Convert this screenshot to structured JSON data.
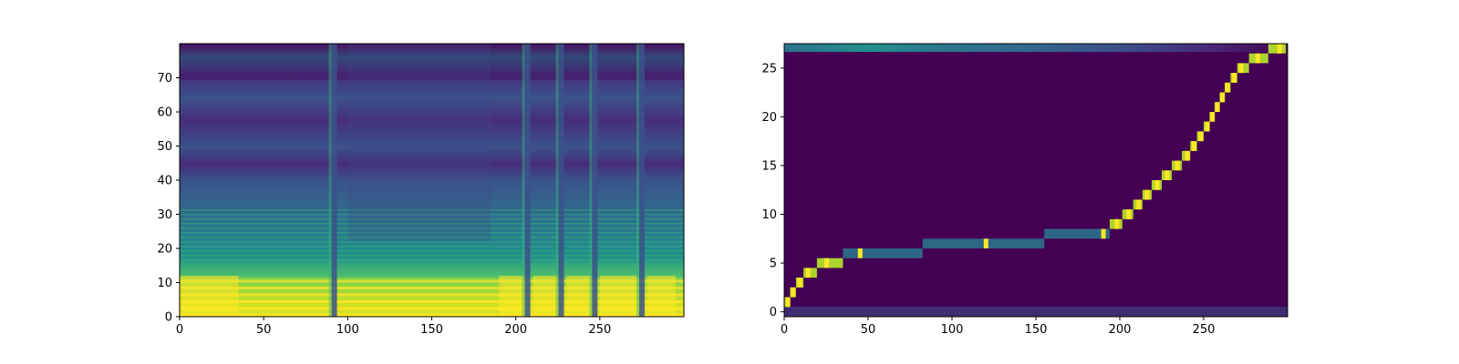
{
  "chart_data": [
    {
      "type": "heatmap",
      "title": "",
      "xlabel": "",
      "ylabel": "",
      "xlim": [
        0,
        300
      ],
      "ylim": [
        0,
        80
      ],
      "xticks": [
        0,
        50,
        100,
        150,
        200,
        250
      ],
      "yticks": [
        0,
        10,
        20,
        30,
        40,
        50,
        60,
        70
      ],
      "colormap": "viridis",
      "grid": false,
      "bright_harmonic_band_y": [
        0,
        12
      ],
      "bright_segments_x": [
        [
          0,
          35
        ],
        [
          190,
          205
        ],
        [
          210,
          225
        ],
        [
          230,
          245
        ],
        [
          250,
          272
        ],
        [
          278,
          295
        ]
      ],
      "vertical_dark_gaps_x": [
        92,
        207,
        227,
        247,
        275
      ]
    },
    {
      "type": "heatmap",
      "title": "",
      "xlabel": "",
      "ylabel": "",
      "xlim": [
        0,
        300
      ],
      "ylim": [
        -0.5,
        27.5
      ],
      "xticks": [
        0,
        50,
        100,
        150,
        200,
        250
      ],
      "yticks": [
        0,
        5,
        10,
        15,
        20,
        25
      ],
      "colormap": "viridis",
      "grid": false,
      "alignment_path": [
        {
          "x": 2,
          "y": 1
        },
        {
          "x": 5,
          "y": 2
        },
        {
          "x": 9,
          "y": 3
        },
        {
          "x": 14,
          "y": 4
        },
        {
          "x": 25,
          "y": 5
        },
        {
          "x": 45,
          "y": 6
        },
        {
          "x": 120,
          "y": 7
        },
        {
          "x": 190,
          "y": 8
        },
        {
          "x": 198,
          "y": 9
        },
        {
          "x": 205,
          "y": 10
        },
        {
          "x": 211,
          "y": 11
        },
        {
          "x": 216,
          "y": 12
        },
        {
          "x": 222,
          "y": 13
        },
        {
          "x": 228,
          "y": 14
        },
        {
          "x": 234,
          "y": 15
        },
        {
          "x": 240,
          "y": 16
        },
        {
          "x": 244,
          "y": 17
        },
        {
          "x": 248,
          "y": 18
        },
        {
          "x": 252,
          "y": 19
        },
        {
          "x": 255,
          "y": 20
        },
        {
          "x": 258,
          "y": 21
        },
        {
          "x": 261,
          "y": 22
        },
        {
          "x": 264,
          "y": 23
        },
        {
          "x": 268,
          "y": 24
        },
        {
          "x": 272,
          "y": 25
        },
        {
          "x": 282,
          "y": 26
        },
        {
          "x": 295,
          "y": 27
        }
      ]
    }
  ]
}
